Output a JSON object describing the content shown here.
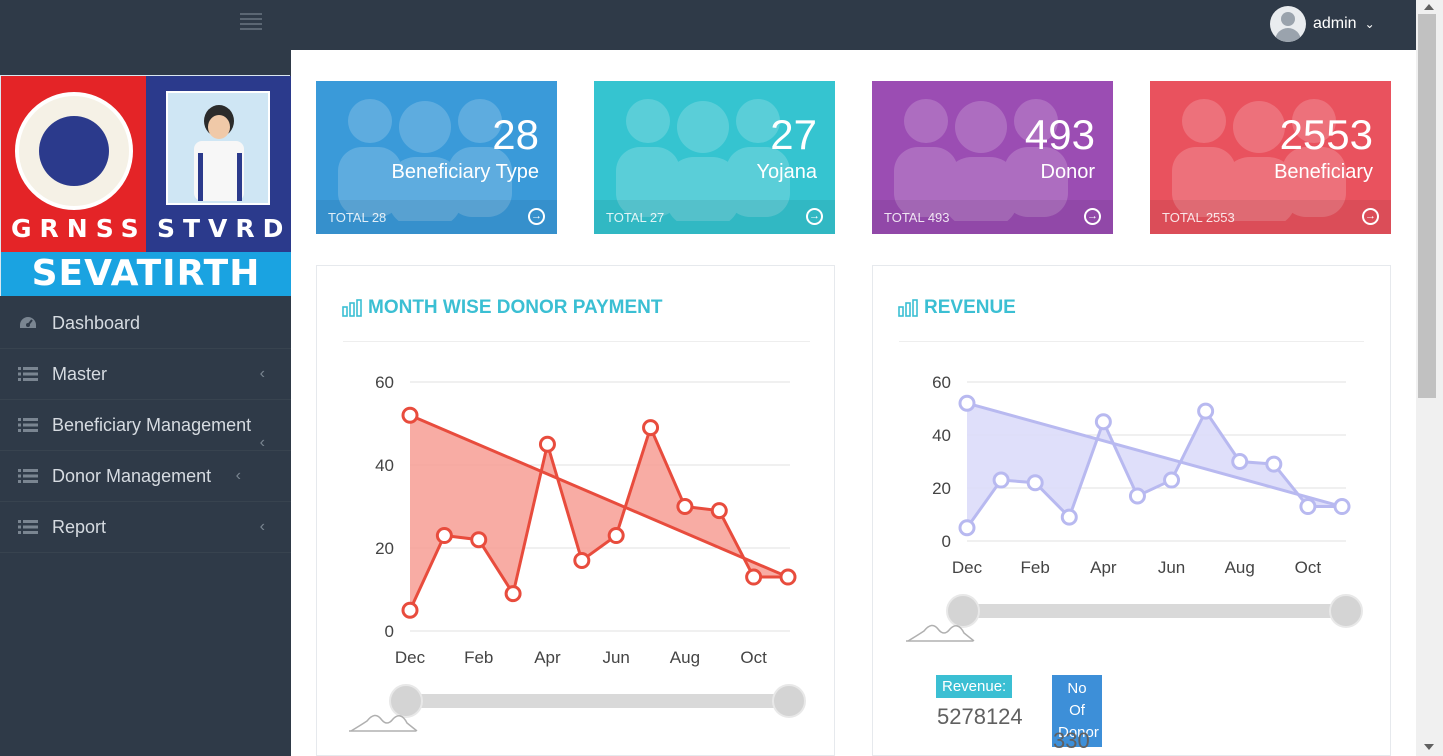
{
  "header": {
    "user": "admin"
  },
  "logo": {
    "left_text": "GRNSS",
    "right_text": "STVRD",
    "tagline": "SEVATIRTH"
  },
  "sidebar": {
    "items": [
      {
        "label": "Dashboard",
        "icon": "dashboard-icon"
      },
      {
        "label": "Master",
        "icon": "list-icon"
      },
      {
        "label": "Beneficiary Management",
        "icon": "list-icon"
      },
      {
        "label": "Donor Management",
        "icon": "list-icon"
      },
      {
        "label": "Report",
        "icon": "list-icon"
      }
    ]
  },
  "stats": [
    {
      "value": "28",
      "label": "Beneficiary Type",
      "footer": "TOTAL 28",
      "color": "#3a9ad9"
    },
    {
      "value": "27",
      "label": "Yojana",
      "footer": "TOTAL 27",
      "color": "#35c4d0"
    },
    {
      "value": "493",
      "label": "Donor",
      "footer": "TOTAL 493",
      "color": "#9b4db3"
    },
    {
      "value": "2553",
      "label": "Beneficiary",
      "footer": "TOTAL 2553",
      "color": "#e9525e"
    }
  ],
  "panels": {
    "donor": {
      "title": "MONTH WISE DONOR PAYMENT"
    },
    "revenue": {
      "title": "REVENUE",
      "revenue_label": "Revenue:",
      "revenue_value": "5278124",
      "donor_label_line1": "No Of",
      "donor_label_line2": "Donor",
      "donor_value": "330"
    }
  },
  "chart_data": [
    {
      "type": "line",
      "title": "MONTH WISE DONOR PAYMENT",
      "x_tick_labels": [
        "Dec",
        "Feb",
        "Apr",
        "Jun",
        "Aug",
        "Oct"
      ],
      "series": [
        {
          "values": [
            5,
            23,
            22,
            9,
            45,
            17,
            23,
            49,
            30,
            29,
            13,
            13
          ]
        },
        {
          "values": [
            52,
            13
          ]
        }
      ],
      "y_ticks": [
        0,
        20,
        40,
        60
      ],
      "ylim": [
        0,
        60
      ],
      "color": "#e84c3d",
      "fill": "#f7a39a"
    },
    {
      "type": "line",
      "title": "REVENUE",
      "x_tick_labels": [
        "Dec",
        "Feb",
        "Apr",
        "Jun",
        "Aug",
        "Oct"
      ],
      "series": [
        {
          "values": [
            5,
            23,
            22,
            9,
            45,
            17,
            23,
            49,
            30,
            29,
            13,
            13
          ]
        },
        {
          "values": [
            52,
            13
          ]
        }
      ],
      "y_ticks": [
        0,
        20,
        40,
        60
      ],
      "ylim": [
        0,
        60
      ],
      "color": "#b8b9f0",
      "fill": "#dcdcfa"
    }
  ]
}
